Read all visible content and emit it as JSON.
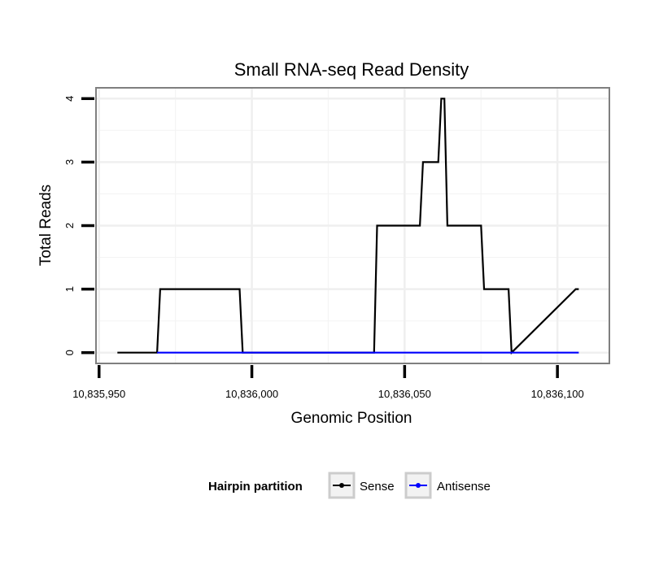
{
  "chart_data": {
    "type": "line",
    "title": "Small RNA-seq Read Density",
    "xlabel": "Genomic Position",
    "ylabel": "Total Reads",
    "xlim": [
      10835949,
      10836117
    ],
    "ylim": [
      -0.17,
      4.17
    ],
    "x_ticks": [
      {
        "value": 10835950,
        "label": "10,835,950"
      },
      {
        "value": 10836000,
        "label": "10,836,000"
      },
      {
        "value": 10836050,
        "label": "10,836,050"
      },
      {
        "value": 10836100,
        "label": "10,836,100"
      }
    ],
    "y_ticks": [
      {
        "value": 0,
        "label": "0"
      },
      {
        "value": 1,
        "label": "1"
      },
      {
        "value": 2,
        "label": "2"
      },
      {
        "value": 3,
        "label": "3"
      },
      {
        "value": 4,
        "label": "4"
      }
    ],
    "grid": true,
    "legend": {
      "title": "Hairpin partition",
      "position": "bottom"
    },
    "series": [
      {
        "name": "Sense",
        "color": "#000000",
        "x": [
          10835956,
          10835969,
          10835970,
          10835996,
          10835997,
          10836040,
          10836041,
          10836055,
          10836056,
          10836061,
          10836062,
          10836063,
          10836064,
          10836075,
          10836076,
          10836084,
          10836085,
          10836106,
          10836107
        ],
        "y": [
          0,
          0,
          1,
          1,
          0,
          0,
          2,
          2,
          3,
          3,
          4,
          4,
          2,
          2,
          1,
          1,
          0,
          1,
          1
        ]
      },
      {
        "name": "Antisense",
        "color": "#0000ff",
        "x": [
          10835969,
          10836107
        ],
        "y": [
          0,
          0
        ]
      }
    ]
  }
}
